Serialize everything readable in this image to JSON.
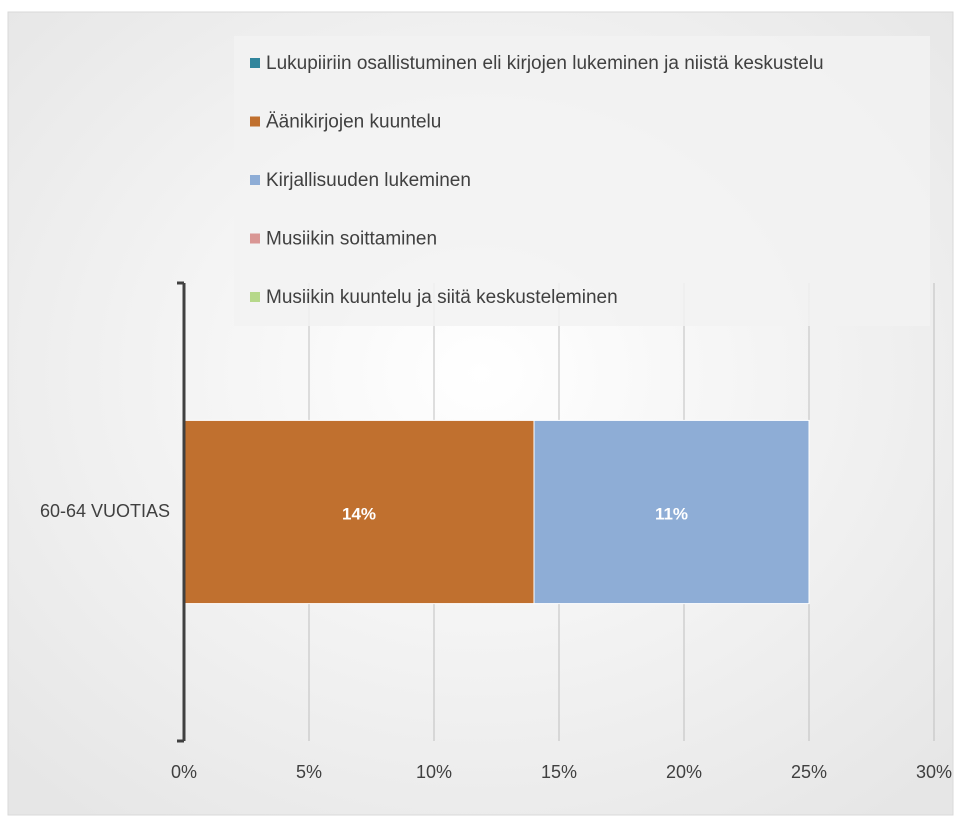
{
  "chart_data": {
    "type": "stacked-bar-horizontal",
    "categories": [
      "60-64 VUOTIAS"
    ],
    "series": [
      {
        "name": "Lukupiiriin osallistuminen eli kirjojen lukeminen ja niistä keskustelu",
        "color": "#31859c",
        "values": [
          0
        ]
      },
      {
        "name": "Äänikirjojen kuuntelu",
        "color": "#c0702f",
        "values": [
          14
        ],
        "value_labels": [
          "14%"
        ]
      },
      {
        "name": "Kirjallisuuden lukeminen",
        "color": "#8eadd6",
        "values": [
          11
        ],
        "value_labels": [
          "11%"
        ]
      },
      {
        "name": "Musiikin soittaminen",
        "color": "#d99694",
        "values": [
          0
        ]
      },
      {
        "name": "Musiikin kuuntelu ja siitä keskusteleminen",
        "color": "#b6d88a",
        "values": [
          0
        ]
      }
    ],
    "xlim": [
      0,
      30
    ],
    "xticks": [
      {
        "value": 0,
        "label": "0%"
      },
      {
        "value": 5,
        "label": "5%"
      },
      {
        "value": 10,
        "label": "10%"
      },
      {
        "value": 15,
        "label": "15%"
      },
      {
        "value": 20,
        "label": "20%"
      },
      {
        "value": 25,
        "label": "25%"
      },
      {
        "value": 30,
        "label": "30%"
      }
    ],
    "grid": true,
    "legend": "top"
  }
}
